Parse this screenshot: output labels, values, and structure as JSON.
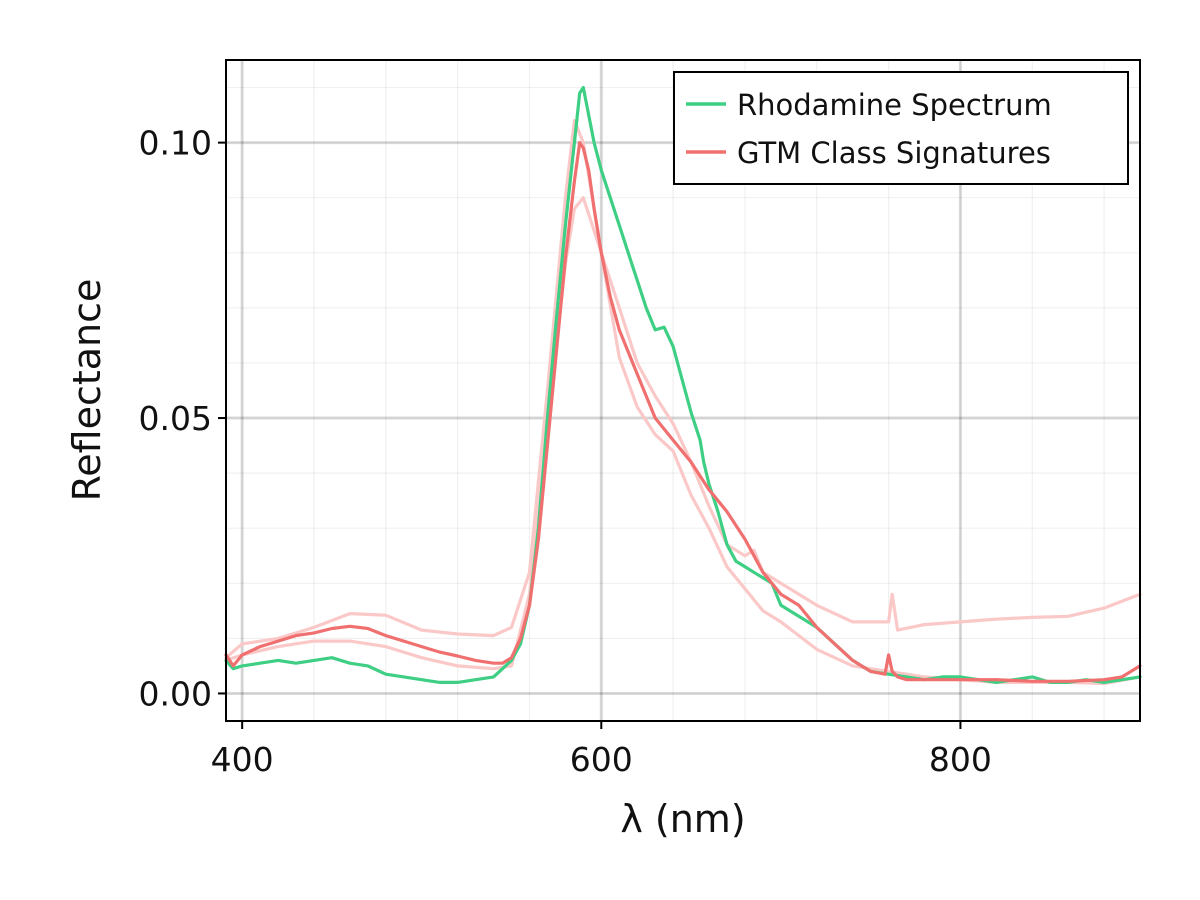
{
  "chart_data": {
    "type": "line",
    "title": "",
    "xlabel": "λ (nm)",
    "ylabel": "Reflectance",
    "xlim": [
      391,
      900
    ],
    "ylim": [
      -0.005,
      0.115
    ],
    "xticks": [
      400,
      600,
      800
    ],
    "xtick_labels": [
      "400",
      "600",
      "800"
    ],
    "yticks": [
      0.0,
      0.05,
      0.1
    ],
    "ytick_labels": [
      "0.00",
      "0.05",
      "0.10"
    ],
    "grid": true,
    "legend_position": "top-right",
    "legend": [
      {
        "label": "Rhodamine Spectrum",
        "color": "#3ecf85"
      },
      {
        "label": "GTM Class Signatures",
        "color": "#f07070"
      }
    ],
    "series": [
      {
        "name": "",
        "role": "class-signature-upper",
        "color": "#fbc8c8",
        "x": [
          391,
          400,
          420,
          440,
          460,
          480,
          500,
          520,
          540,
          550,
          560,
          570,
          580,
          585,
          590,
          595,
          600,
          610,
          620,
          630,
          640,
          650,
          660,
          670,
          680,
          685,
          690,
          700,
          720,
          740,
          760,
          762,
          765,
          780,
          800,
          820,
          840,
          860,
          880,
          900
        ],
        "y": [
          0.0065,
          0.009,
          0.01,
          0.012,
          0.0145,
          0.0142,
          0.0115,
          0.0108,
          0.0105,
          0.012,
          0.022,
          0.055,
          0.09,
          0.104,
          0.1,
          0.09,
          0.08,
          0.07,
          0.06,
          0.054,
          0.049,
          0.042,
          0.034,
          0.027,
          0.025,
          0.026,
          0.022,
          0.02,
          0.016,
          0.013,
          0.013,
          0.018,
          0.0115,
          0.0125,
          0.013,
          0.0135,
          0.0138,
          0.014,
          0.0155,
          0.018
        ]
      },
      {
        "name": "",
        "role": "class-signature-lower",
        "color": "#fbc8c8",
        "x": [
          391,
          400,
          420,
          440,
          460,
          480,
          500,
          520,
          540,
          550,
          560,
          570,
          580,
          585,
          590,
          600,
          610,
          620,
          630,
          640,
          650,
          660,
          670,
          680,
          690,
          700,
          720,
          740,
          760,
          780,
          800,
          820,
          840,
          860,
          880,
          900
        ],
        "y": [
          0.006,
          0.007,
          0.0085,
          0.0095,
          0.0095,
          0.0085,
          0.0065,
          0.005,
          0.0045,
          0.005,
          0.018,
          0.048,
          0.078,
          0.088,
          0.09,
          0.08,
          0.061,
          0.052,
          0.047,
          0.044,
          0.036,
          0.03,
          0.023,
          0.019,
          0.015,
          0.013,
          0.008,
          0.005,
          0.004,
          0.003,
          0.0025,
          0.002,
          0.002,
          0.002,
          0.0018,
          0.003
        ]
      },
      {
        "name": "Rhodamine Spectrum",
        "color": "#3ecf85",
        "x": [
          391,
          395,
          400,
          410,
          420,
          430,
          440,
          450,
          460,
          470,
          480,
          490,
          500,
          510,
          520,
          530,
          540,
          550,
          555,
          560,
          565,
          570,
          575,
          580,
          585,
          588,
          590,
          593,
          596,
          600,
          605,
          610,
          615,
          620,
          625,
          630,
          635,
          640,
          645,
          650,
          655,
          657,
          660,
          665,
          670,
          675,
          680,
          685,
          690,
          695,
          700,
          710,
          720,
          730,
          740,
          750,
          760,
          770,
          780,
          790,
          800,
          810,
          820,
          830,
          840,
          850,
          860,
          870,
          880,
          890,
          900
        ],
        "y": [
          0.006,
          0.0045,
          0.005,
          0.0055,
          0.006,
          0.0055,
          0.006,
          0.0065,
          0.0055,
          0.005,
          0.0035,
          0.003,
          0.0025,
          0.002,
          0.002,
          0.0025,
          0.003,
          0.006,
          0.009,
          0.016,
          0.03,
          0.05,
          0.068,
          0.085,
          0.1,
          0.109,
          0.11,
          0.105,
          0.1,
          0.095,
          0.09,
          0.085,
          0.08,
          0.075,
          0.07,
          0.066,
          0.0665,
          0.063,
          0.057,
          0.051,
          0.046,
          0.042,
          0.038,
          0.033,
          0.027,
          0.024,
          0.023,
          0.022,
          0.021,
          0.02,
          0.016,
          0.014,
          0.012,
          0.009,
          0.006,
          0.004,
          0.0035,
          0.003,
          0.0025,
          0.003,
          0.003,
          0.0025,
          0.002,
          0.0025,
          0.003,
          0.002,
          0.002,
          0.0025,
          0.002,
          0.0025,
          0.003
        ]
      },
      {
        "name": "GTM Class Signatures",
        "color": "#f07070",
        "x": [
          391,
          395,
          400,
          410,
          420,
          430,
          440,
          450,
          460,
          470,
          480,
          490,
          500,
          510,
          520,
          530,
          540,
          545,
          550,
          555,
          560,
          565,
          570,
          575,
          580,
          585,
          588,
          590,
          593,
          596,
          600,
          605,
          610,
          620,
          630,
          640,
          650,
          660,
          670,
          680,
          690,
          700,
          710,
          720,
          730,
          740,
          750,
          758,
          760,
          762,
          765,
          770,
          780,
          800,
          820,
          840,
          860,
          880,
          890,
          900
        ],
        "y": [
          0.007,
          0.005,
          0.007,
          0.0085,
          0.0095,
          0.0105,
          0.011,
          0.0118,
          0.0122,
          0.0118,
          0.0105,
          0.0095,
          0.0085,
          0.0075,
          0.0068,
          0.006,
          0.0055,
          0.0055,
          0.0065,
          0.01,
          0.016,
          0.028,
          0.045,
          0.062,
          0.079,
          0.093,
          0.1,
          0.099,
          0.095,
          0.088,
          0.08,
          0.072,
          0.066,
          0.058,
          0.05,
          0.046,
          0.042,
          0.037,
          0.033,
          0.028,
          0.022,
          0.018,
          0.016,
          0.012,
          0.009,
          0.006,
          0.004,
          0.0035,
          0.007,
          0.004,
          0.003,
          0.0025,
          0.0025,
          0.0025,
          0.0025,
          0.0022,
          0.0022,
          0.0025,
          0.003,
          0.005
        ]
      }
    ]
  }
}
